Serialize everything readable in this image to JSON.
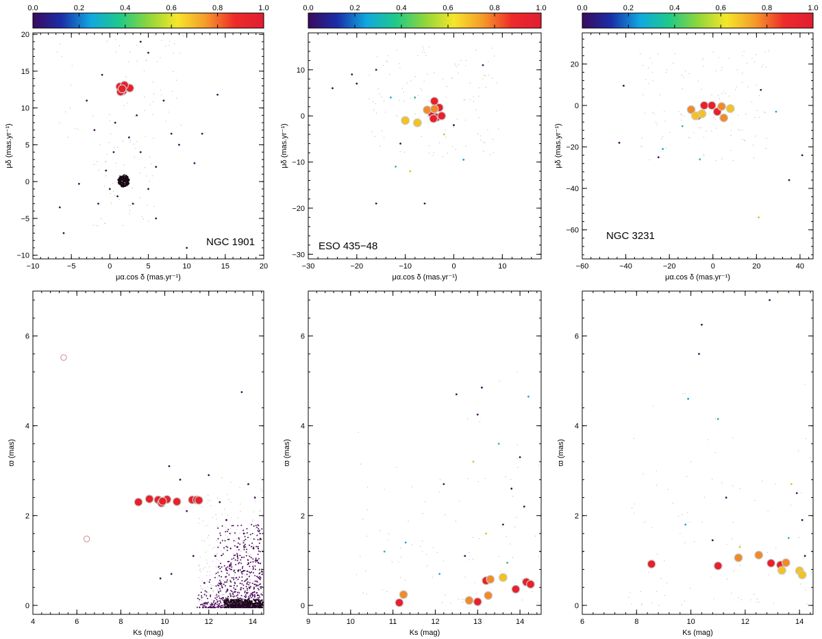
{
  "colorbar": {
    "ticks": [
      "0.0",
      "0.2",
      "0.4",
      "0.6",
      "0.8",
      "1.0"
    ],
    "stops": [
      "#3a0a5e",
      "#1a2ea8",
      "#10a8e0",
      "#1ec98a",
      "#8ed63a",
      "#f6e62a",
      "#f59a2a",
      "#ee2a2a",
      "#e01e32"
    ]
  },
  "colors": {
    "member": "#e8202a",
    "prob_high": "#f08a2a",
    "prob_mid": "#f4c21e",
    "field": "#4a0a5a",
    "cluster_core": "#1a0a14",
    "ring": "#c9c9c9"
  },
  "chart_data": [
    {
      "id": "ngc1901-pm",
      "type": "scatter",
      "cluster": "NGC 1901",
      "label": "NGC 1901",
      "xlabel": "μα.cos δ (mas.yr⁻¹)",
      "ylabel": "μδ (mas.yr⁻¹)",
      "xlim": [
        -10,
        20
      ],
      "ylim": [
        -10.5,
        20.2
      ],
      "xticks": [
        -10,
        -5,
        0,
        5,
        10,
        15,
        20
      ],
      "yticks": [
        -10,
        -5,
        0,
        5,
        10,
        15,
        20
      ],
      "members": [
        {
          "x": 1.3,
          "y": 12.9,
          "p": 0.99
        },
        {
          "x": 1.7,
          "y": 12.3,
          "p": 0.99
        },
        {
          "x": 2.2,
          "y": 12.8,
          "p": 0.98
        },
        {
          "x": 1.4,
          "y": 12.2,
          "p": 0.97
        },
        {
          "x": 2.6,
          "y": 12.7,
          "p": 0.96
        },
        {
          "x": 1.9,
          "y": 13.1,
          "p": 0.99
        },
        {
          "x": 1.6,
          "y": 12.6,
          "p": 0.98
        }
      ],
      "field": [
        {
          "x": -6,
          "y": -7
        },
        {
          "x": -4,
          "y": -0.3
        },
        {
          "x": -3,
          "y": 11
        },
        {
          "x": -1,
          "y": 14.5
        },
        {
          "x": -0.5,
          "y": 1.5
        },
        {
          "x": 0,
          "y": -1
        },
        {
          "x": 0.5,
          "y": 4
        },
        {
          "x": 0.7,
          "y": 8
        },
        {
          "x": 1,
          "y": -2
        },
        {
          "x": 2.5,
          "y": 6
        },
        {
          "x": 3,
          "y": -3
        },
        {
          "x": 3.5,
          "y": 9
        },
        {
          "x": 4,
          "y": 4
        },
        {
          "x": 5,
          "y": -1
        },
        {
          "x": 6,
          "y": 2
        },
        {
          "x": 7,
          "y": 11
        },
        {
          "x": 8,
          "y": 6.5
        },
        {
          "x": 9,
          "y": 5
        },
        {
          "x": 10,
          "y": -9
        },
        {
          "x": 11,
          "y": 2.5
        },
        {
          "x": 12,
          "y": 6.5
        },
        {
          "x": 14,
          "y": 11.8
        },
        {
          "x": -1.5,
          "y": -3
        },
        {
          "x": 4,
          "y": 19
        },
        {
          "x": 5,
          "y": 17.5
        },
        {
          "x": -6.5,
          "y": -3.5
        },
        {
          "x": 6,
          "y": -5
        },
        {
          "x": -2,
          "y": 7
        }
      ]
    },
    {
      "id": "eso435-pm",
      "type": "scatter",
      "cluster": "ESO 435-48",
      "label": "ESO 435−48",
      "xlabel": "μα.cos δ (mas.yr⁻¹)",
      "ylabel": "μδ (mas.yr⁻¹)",
      "xlim": [
        -30,
        18
      ],
      "ylim": [
        -31,
        18
      ],
      "xticks": [
        -30,
        -20,
        -10,
        0,
        10
      ],
      "yticks": [
        -30,
        -20,
        -10,
        0,
        10
      ],
      "members": [
        {
          "x": -4,
          "y": 3.2,
          "p": 0.98
        },
        {
          "x": -3,
          "y": 1.8,
          "p": 0.97
        },
        {
          "x": -4.5,
          "y": 0.5,
          "p": 0.99
        },
        {
          "x": -3.5,
          "y": -0.3,
          "p": 0.98
        },
        {
          "x": -2.5,
          "y": 0,
          "p": 0.99
        },
        {
          "x": -4.2,
          "y": -0.6,
          "p": 0.98
        },
        {
          "x": -5.5,
          "y": 1.3,
          "p": 0.85
        },
        {
          "x": -4,
          "y": 1.5,
          "p": 0.82
        },
        {
          "x": -10,
          "y": -1,
          "p": 0.72
        },
        {
          "x": -7.5,
          "y": -1.5,
          "p": 0.72
        }
      ],
      "field": [
        {
          "x": -25,
          "y": 6
        },
        {
          "x": -21,
          "y": 9
        },
        {
          "x": -16,
          "y": 10
        },
        {
          "x": -13,
          "y": 4
        },
        {
          "x": -12,
          "y": -11
        },
        {
          "x": -9,
          "y": -12
        },
        {
          "x": -6,
          "y": -19
        },
        {
          "x": -16,
          "y": -19
        },
        {
          "x": 6,
          "y": 11
        },
        {
          "x": 2,
          "y": -9.5
        },
        {
          "x": -8,
          "y": 4
        },
        {
          "x": -2,
          "y": -4
        },
        {
          "x": 0,
          "y": -2
        },
        {
          "x": -11,
          "y": -6
        },
        {
          "x": -20,
          "y": 7
        }
      ]
    },
    {
      "id": "ngc3231-pm",
      "type": "scatter",
      "cluster": "NGC 3231",
      "label": "NGC 3231",
      "xlabel": "μα.cos δ (mas.yr⁻¹)",
      "ylabel": "μδ (mas.yr⁻¹)",
      "xlim": [
        -60,
        46
      ],
      "ylim": [
        -74,
        35
      ],
      "xticks": [
        -60,
        -40,
        -20,
        0,
        20,
        40
      ],
      "yticks": [
        -60,
        -40,
        -20,
        0,
        20
      ],
      "members": [
        {
          "x": -4,
          "y": 0,
          "p": 0.97
        },
        {
          "x": -0.5,
          "y": 0,
          "p": 0.99
        },
        {
          "x": 2,
          "y": -3,
          "p": 0.98
        },
        {
          "x": -7,
          "y": -5,
          "p": 0.99
        },
        {
          "x": 4,
          "y": -0.5,
          "p": 0.88
        },
        {
          "x": 5,
          "y": -6,
          "p": 0.88
        },
        {
          "x": -10,
          "y": -2,
          "p": 0.8
        },
        {
          "x": -5,
          "y": -4,
          "p": 0.72
        },
        {
          "x": 8,
          "y": -1.5,
          "p": 0.72
        },
        {
          "x": -8,
          "y": -5,
          "p": 0.74
        }
      ],
      "field": [
        {
          "x": -41,
          "y": 9.5
        },
        {
          "x": -43,
          "y": -18
        },
        {
          "x": -25,
          "y": -25
        },
        {
          "x": -23,
          "y": -21
        },
        {
          "x": -6,
          "y": -26
        },
        {
          "x": 21,
          "y": -54
        },
        {
          "x": 35,
          "y": -36
        },
        {
          "x": 41,
          "y": -24
        },
        {
          "x": 22,
          "y": 7.5
        },
        {
          "x": 29,
          "y": -3
        },
        {
          "x": -14,
          "y": -10
        }
      ]
    },
    {
      "id": "ngc1901-plx",
      "type": "scatter",
      "cluster": "NGC 1901",
      "xlabel": "Ks (mag)",
      "ylabel": "ϖ (mas)",
      "xlim": [
        4,
        14.5
      ],
      "ylim": [
        -0.2,
        7
      ],
      "xticks": [
        4,
        6,
        8,
        10,
        12,
        14
      ],
      "yticks": [
        0,
        2,
        4,
        6
      ],
      "members": [
        {
          "x": 8.8,
          "y": 2.3,
          "p": 0.98
        },
        {
          "x": 9.3,
          "y": 2.37,
          "p": 0.98
        },
        {
          "x": 9.7,
          "y": 2.35,
          "p": 0.99
        },
        {
          "x": 9.85,
          "y": 2.28,
          "p": 0.99
        },
        {
          "x": 10.1,
          "y": 2.36,
          "p": 0.98
        },
        {
          "x": 10.55,
          "y": 2.31,
          "p": 0.98
        },
        {
          "x": 11.25,
          "y": 2.35,
          "p": 0.97
        },
        {
          "x": 11.45,
          "y": 2.35,
          "p": 0.98
        },
        {
          "x": 11.55,
          "y": 2.34,
          "p": 0.98
        },
        {
          "x": 9.9,
          "y": 2.32,
          "p": 0.99
        }
      ],
      "open_rings": [
        {
          "x": 5.4,
          "y": 5.52
        },
        {
          "x": 6.45,
          "y": 1.48
        }
      ],
      "field": [
        {
          "x": 13.5,
          "y": 4.75
        },
        {
          "x": 12,
          "y": 2.9
        },
        {
          "x": 12.5,
          "y": 2.3
        },
        {
          "x": 11,
          "y": 2.1
        },
        {
          "x": 10.2,
          "y": 3.1
        },
        {
          "x": 10.7,
          "y": 2.8
        },
        {
          "x": 9.8,
          "y": 0.6
        },
        {
          "x": 10.3,
          "y": 0.7
        },
        {
          "x": 11.3,
          "y": 1.1
        },
        {
          "x": 12.8,
          "y": 1.9
        },
        {
          "x": 13.3,
          "y": 1.3
        },
        {
          "x": 13.8,
          "y": 2.7
        },
        {
          "x": 14.1,
          "y": 2.4
        },
        {
          "x": 13.6,
          "y": 1.6
        },
        {
          "x": 14.2,
          "y": 1
        },
        {
          "x": 12.3,
          "y": 1.1
        },
        {
          "x": 11.8,
          "y": 0.5
        },
        {
          "x": 13,
          "y": 0.9
        }
      ]
    },
    {
      "id": "eso435-plx",
      "type": "scatter",
      "cluster": "ESO 435-48",
      "xlabel": "Ks (mag)",
      "ylabel": "ϖ (mas)",
      "xlim": [
        9,
        14.5
      ],
      "ylim": [
        -0.2,
        7
      ],
      "xticks": [
        9,
        10,
        11,
        12,
        13,
        14
      ],
      "yticks": [
        0,
        2,
        4,
        6
      ],
      "members": [
        {
          "x": 11.15,
          "y": 0.06,
          "p": 0.99
        },
        {
          "x": 11.25,
          "y": 0.24,
          "p": 0.86
        },
        {
          "x": 12.8,
          "y": 0.11,
          "p": 0.86
        },
        {
          "x": 13,
          "y": 0.08,
          "p": 0.98
        },
        {
          "x": 13.2,
          "y": 0.55,
          "p": 0.97
        },
        {
          "x": 13.3,
          "y": 0.58,
          "p": 0.84
        },
        {
          "x": 13.6,
          "y": 0.62,
          "p": 0.72
        },
        {
          "x": 13.25,
          "y": 0.22,
          "p": 0.84
        },
        {
          "x": 13.9,
          "y": 0.36,
          "p": 0.98
        },
        {
          "x": 14.15,
          "y": 0.52,
          "p": 0.98
        },
        {
          "x": 14.25,
          "y": 0.47,
          "p": 0.98
        }
      ],
      "field": [
        {
          "x": 13.1,
          "y": 4.85
        },
        {
          "x": 12.5,
          "y": 4.7
        },
        {
          "x": 13,
          "y": 4.25
        },
        {
          "x": 14.2,
          "y": 4.65
        },
        {
          "x": 13.5,
          "y": 3.6
        },
        {
          "x": 12.9,
          "y": 3.2
        },
        {
          "x": 13.8,
          "y": 2.6
        },
        {
          "x": 14.1,
          "y": 2.2
        },
        {
          "x": 12.2,
          "y": 2.7
        },
        {
          "x": 11.3,
          "y": 1.4
        },
        {
          "x": 10.8,
          "y": 1.2
        },
        {
          "x": 13.2,
          "y": 1.6
        },
        {
          "x": 12.7,
          "y": 1.1
        },
        {
          "x": 13.6,
          "y": 1.8
        },
        {
          "x": 14,
          "y": 3.3
        },
        {
          "x": 12.1,
          "y": 0.7
        },
        {
          "x": 13.7,
          "y": 0.95
        }
      ]
    },
    {
      "id": "ngc3231-plx",
      "type": "scatter",
      "cluster": "NGC 3231",
      "xlabel": "Ks (mag)",
      "ylabel": "ϖ (mas)",
      "xlim": [
        6,
        14.5
      ],
      "ylim": [
        -0.2,
        7
      ],
      "xticks": [
        6,
        8,
        10,
        12,
        14
      ],
      "yticks": [
        0,
        2,
        4,
        6
      ],
      "members": [
        {
          "x": 8.55,
          "y": 0.92,
          "p": 0.99
        },
        {
          "x": 11,
          "y": 0.88,
          "p": 0.97
        },
        {
          "x": 11.75,
          "y": 1.06,
          "p": 0.88
        },
        {
          "x": 12.5,
          "y": 1.12,
          "p": 0.86
        },
        {
          "x": 12.95,
          "y": 0.94,
          "p": 0.98
        },
        {
          "x": 13.3,
          "y": 0.9,
          "p": 0.97
        },
        {
          "x": 13.5,
          "y": 0.95,
          "p": 0.84
        },
        {
          "x": 13.35,
          "y": 0.78,
          "p": 0.74
        },
        {
          "x": 14,
          "y": 0.77,
          "p": 0.74
        },
        {
          "x": 14.1,
          "y": 0.68,
          "p": 0.74
        }
      ],
      "field": [
        {
          "x": 12.9,
          "y": 6.8
        },
        {
          "x": 10.4,
          "y": 6.25
        },
        {
          "x": 10.3,
          "y": 5.6
        },
        {
          "x": 9.9,
          "y": 4.6
        },
        {
          "x": 11,
          "y": 4.15
        },
        {
          "x": 13.7,
          "y": 2.7
        },
        {
          "x": 13.9,
          "y": 2.5
        },
        {
          "x": 11.3,
          "y": 2.4
        },
        {
          "x": 14.1,
          "y": 1.9
        },
        {
          "x": 9.8,
          "y": 1.8
        },
        {
          "x": 13.6,
          "y": 1.5
        },
        {
          "x": 11.8,
          "y": 1.3
        },
        {
          "x": 10.8,
          "y": 1.45
        },
        {
          "x": 14.2,
          "y": 1.1
        }
      ]
    }
  ]
}
